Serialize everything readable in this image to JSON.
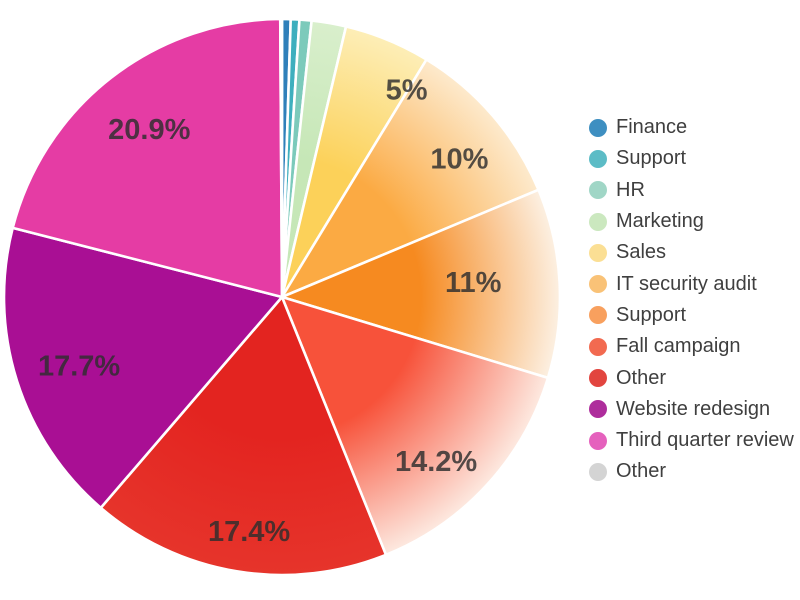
{
  "chart_data": {
    "type": "pie",
    "title": "",
    "legend_position": "right",
    "start_angle_deg": 0,
    "direction": "clockwise",
    "background_color": "#ffffff",
    "separator_color": "#ffffff",
    "label_color": "#2e2e2e",
    "legend_text_color": "#3f3f3f",
    "slices": [
      {
        "label": "Finance",
        "value": 0.5,
        "display_label": "",
        "dot_color": "#3e8fc1",
        "color_inner": "#2f80ba",
        "color_outer": "#2f80ba"
      },
      {
        "label": "Support",
        "value": 0.5,
        "display_label": "",
        "dot_color": "#5cbcc6",
        "color_inner": "#3eafbe",
        "color_outer": "#3eafbe"
      },
      {
        "label": "HR",
        "value": 0.7,
        "display_label": "",
        "dot_color": "#a0d6c6",
        "color_inner": "#7ccabb",
        "color_outer": "#7ccabb"
      },
      {
        "label": "Marketing",
        "value": 2.0,
        "display_label": "",
        "dot_color": "#cbe8bf",
        "color_inner": "#c6e7b7",
        "color_outer": "#d9efcc"
      },
      {
        "label": "Sales",
        "value": 5.0,
        "display_label": "5%",
        "dot_color": "#fbdf94",
        "color_inner": "#fcd159",
        "color_outer": "#fdeeb7",
        "label_angle_deg": 31.0,
        "label_radius_frac": 0.87
      },
      {
        "label": "IT security audit",
        "value": 10.0,
        "display_label": "10%",
        "dot_color": "#f9c277",
        "color_inner": "#fbaa43",
        "color_outer": "#fdeacd",
        "label_angle_deg": 52.0,
        "label_radius_frac": 0.81
      },
      {
        "label": "Support",
        "value": 11.0,
        "display_label": "11%",
        "dot_color": "#f8a05e",
        "color_inner": "#f68a20",
        "color_outer": "#fcf0e2",
        "label_angle_deg": 85.5,
        "label_radius_frac": 0.69
      },
      {
        "label": "Fall campaign",
        "value": 14.2,
        "display_label": "14.2%",
        "dot_color": "#f26a50",
        "color_inner": "#f7523a",
        "color_outer": "#fde9e0",
        "label_angle_deg": 136.8,
        "label_radius_frac": 0.81
      },
      {
        "label": "Other",
        "value": 17.4,
        "display_label": "17.4%",
        "dot_color": "#e2453f",
        "color_inner": "#e32420",
        "color_outer": "#e6342b",
        "label_angle_deg": 188.0,
        "label_radius_frac": 0.85
      },
      {
        "label": "Website redesign",
        "value": 17.7,
        "display_label": "17.7%",
        "dot_color": "#ae2d9c",
        "color_inner": "#a90f94",
        "color_outer": "#a90f94",
        "label_angle_deg": 251.4,
        "label_radius_frac": 0.77
      },
      {
        "label": "Third quarter review",
        "value": 20.9,
        "display_label": "20.9%",
        "dot_color": "#e561bd",
        "color_inner": "#e53ca4",
        "color_outer": "#e53ca4",
        "label_angle_deg": 321.7,
        "label_radius_frac": 0.77
      },
      {
        "label": "Other",
        "value": 0.1,
        "display_label": "",
        "dot_color": "#d4d4d4",
        "color_inner": "#d4d4d4",
        "color_outer": "#d4d4d4"
      }
    ]
  }
}
